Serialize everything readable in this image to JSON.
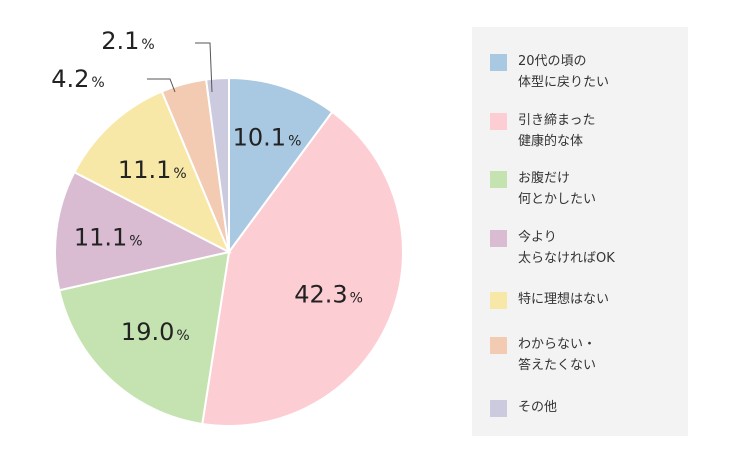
{
  "chart_data": {
    "type": "pie",
    "unit": "%",
    "start_angle": "12 o'clock, clockwise",
    "slices": [
      {
        "label": "20代の頃の\n体型に戻りたい",
        "value": 10.1,
        "color": "#a9c9e2"
      },
      {
        "label": "引き締まった\n健康的な体",
        "value": 42.3,
        "color": "#fdcdd4"
      },
      {
        "label": "お腹だけ\n何とかしたい",
        "value": 19.0,
        "color": "#c5e3b1"
      },
      {
        "label": "今より\n太らなければOK",
        "value": 11.1,
        "color": "#d9bcd2"
      },
      {
        "label": "特に理想はない",
        "value": 11.1,
        "color": "#f8e8a7"
      },
      {
        "label": "わからない・\n答えたくない",
        "value": 4.2,
        "color": "#f3cab2"
      },
      {
        "label": "その他",
        "value": 2.1,
        "color": "#cccadf"
      }
    ],
    "value_labels": [
      "10.1",
      "42.3",
      "19.0",
      "11.1",
      "11.1",
      "4.2",
      "2.1"
    ],
    "legend_position": "right"
  }
}
